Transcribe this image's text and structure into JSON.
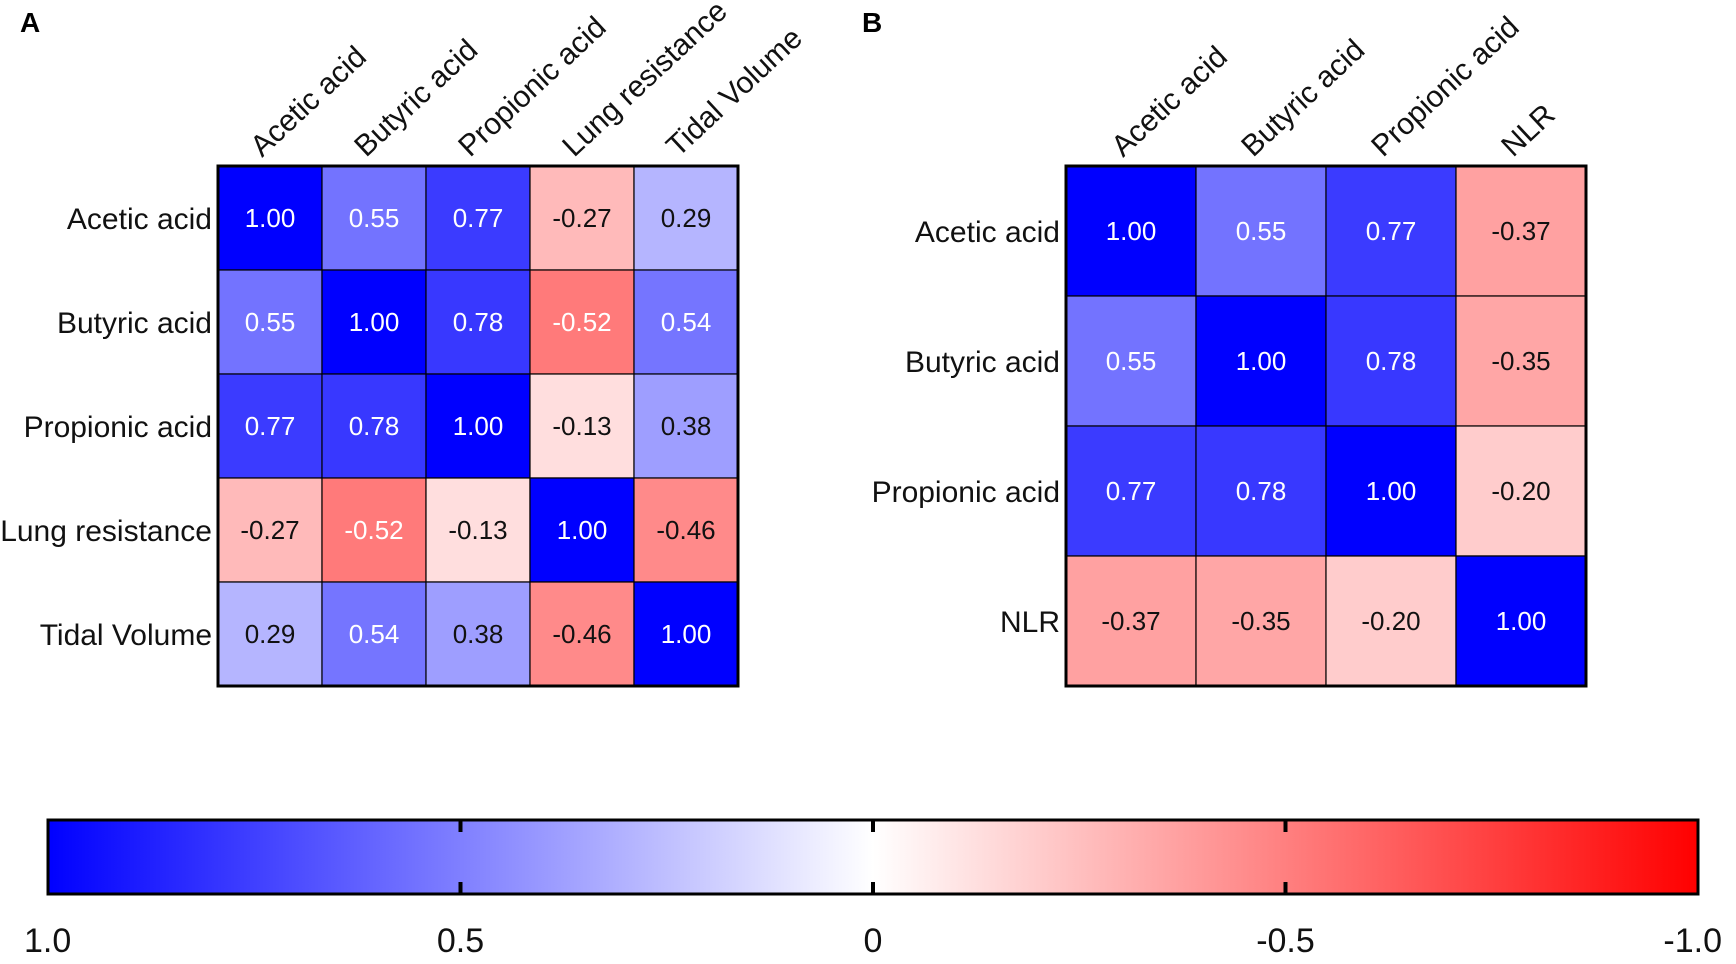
{
  "chart_data": [
    {
      "type": "heatmap",
      "panel": "A",
      "rows": [
        "Acetic acid",
        "Butyric acid",
        "Propionic acid",
        "Lung resistance",
        "Tidal Volume"
      ],
      "columns": [
        "Acetic acid",
        "Butyric acid",
        "Propionic acid",
        "Lung resistance",
        "Tidal Volume"
      ],
      "values": [
        [
          1.0,
          0.55,
          0.77,
          -0.27,
          0.29
        ],
        [
          0.55,
          1.0,
          0.78,
          -0.52,
          0.54
        ],
        [
          0.77,
          0.78,
          1.0,
          -0.13,
          0.38
        ],
        [
          -0.27,
          -0.52,
          -0.13,
          1.0,
          -0.46
        ],
        [
          0.29,
          0.54,
          0.38,
          -0.46,
          1.0
        ]
      ]
    },
    {
      "type": "heatmap",
      "panel": "B",
      "rows": [
        "Acetic acid",
        "Butyric acid",
        "Propionic acid",
        "NLR"
      ],
      "columns": [
        "Acetic acid",
        "Butyric acid",
        "Propionic acid",
        "NLR"
      ],
      "values": [
        [
          1.0,
          0.55,
          0.77,
          -0.37
        ],
        [
          0.55,
          1.0,
          0.78,
          -0.35
        ],
        [
          0.77,
          0.78,
          1.0,
          -0.2
        ],
        [
          -0.37,
          -0.35,
          -0.2,
          1.0
        ]
      ]
    }
  ],
  "colorbar": {
    "range": [
      1.0,
      -1.0
    ],
    "ticks": [
      1.0,
      0.5,
      0,
      -0.5,
      -1.0
    ],
    "tick_labels": [
      "1.0",
      "0.5",
      "0",
      "-0.5",
      "-1.0"
    ],
    "positive_color": "#0000ff",
    "zero_color": "#ffffff",
    "negative_color": "#ff0000"
  }
}
